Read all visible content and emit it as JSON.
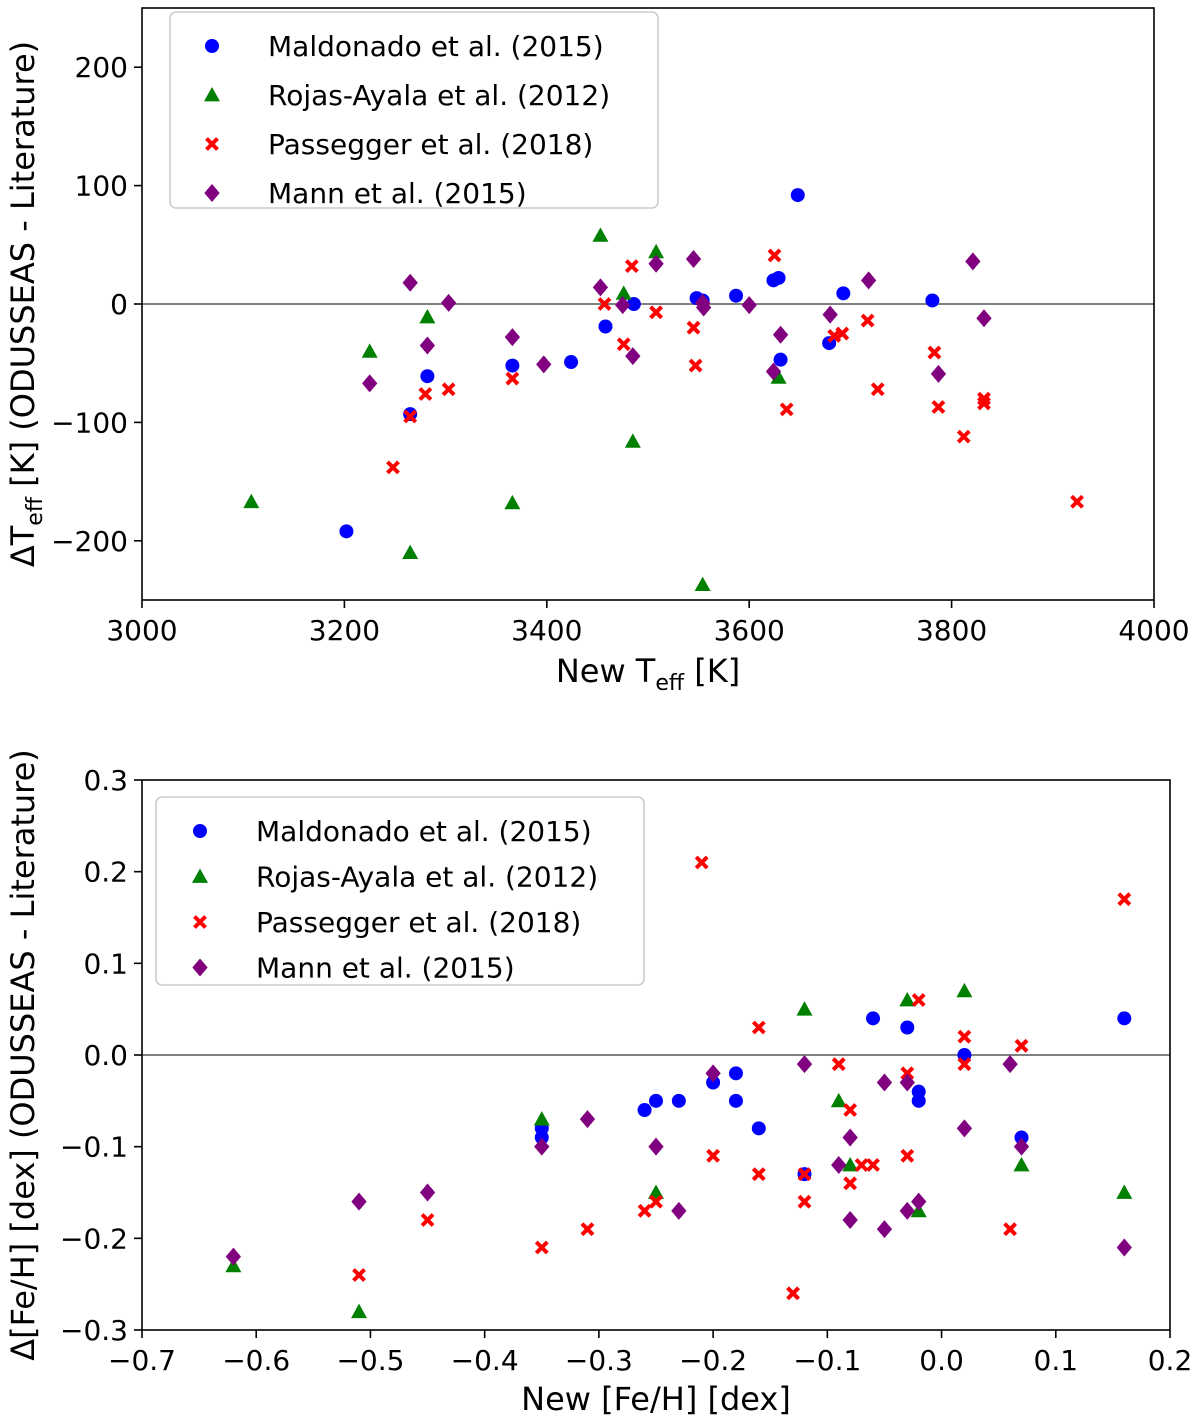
{
  "colors": {
    "maldonado": "#0000ff",
    "rojas": "#008000",
    "passegger": "#ff0000",
    "mann": "#800080",
    "zeroline": "#808080"
  },
  "chart_data": [
    {
      "type": "scatter",
      "xlabel": {
        "pre": "New T",
        "sub": "eff",
        "post": " [K]"
      },
      "ylabel": {
        "pre": "ΔT",
        "sub": "eff",
        "post": " [K] (ODUSSEAS - Literature)"
      },
      "xlim": [
        3000,
        4000
      ],
      "ylim": [
        -250,
        250
      ],
      "xticks": [
        3000,
        3200,
        3400,
        3600,
        3800,
        4000
      ],
      "xtick_labels": [
        "3000",
        "3200",
        "3400",
        "3600",
        "3800",
        "4000"
      ],
      "yticks": [
        -200,
        -100,
        0,
        100,
        200
      ],
      "ytick_labels": [
        "−200",
        "−100",
        "0",
        "100",
        "200"
      ],
      "reference_line": 0,
      "legend_position": "upper-left",
      "series": [
        {
          "key": "maldonado",
          "name": "Maldonado et al. (2015)",
          "marker": "circle",
          "x": [
            3202,
            3265,
            3282,
            3366,
            3424,
            3458,
            3486,
            3548,
            3554,
            3587,
            3624,
            3629,
            3631,
            3648,
            3679,
            3693,
            3781
          ],
          "y": [
            -192,
            -93,
            -61,
            -52,
            -49,
            -19,
            0,
            5,
            3,
            7,
            20,
            22,
            -47,
            92,
            -33,
            9,
            3
          ]
        },
        {
          "key": "rojas",
          "name": "Rojas-Ayala et al. (2012)",
          "marker": "triangle",
          "x": [
            3108,
            3225,
            3265,
            3282,
            3366,
            3453,
            3476,
            3485,
            3508,
            3554,
            3629
          ],
          "y": [
            -167,
            -40,
            -210,
            -11,
            -168,
            58,
            9,
            -116,
            44,
            -237,
            -62
          ]
        },
        {
          "key": "passegger",
          "name": "Passegger et al. (2018)",
          "marker": "x",
          "x": [
            3248,
            3265,
            3280,
            3303,
            3366,
            3457,
            3476,
            3484,
            3508,
            3545,
            3547,
            3625,
            3637,
            3684,
            3692,
            3717,
            3727,
            3783,
            3787,
            3812,
            3832,
            3832,
            3924
          ],
          "y": [
            -138,
            -95,
            -76,
            -72,
            -63,
            0,
            -34,
            32,
            -7,
            -20,
            -52,
            41,
            -89,
            -27,
            -25,
            -14,
            -72,
            -41,
            -87,
            -112,
            -80,
            -84,
            -167
          ]
        },
        {
          "key": "mann",
          "name": "Mann et al. (2015)",
          "marker": "diamond",
          "x": [
            3225,
            3265,
            3282,
            3303,
            3366,
            3397,
            3453,
            3475,
            3485,
            3508,
            3545,
            3554,
            3555,
            3600,
            3624,
            3631,
            3680,
            3718,
            3787,
            3821,
            3832
          ],
          "y": [
            -67,
            18,
            -35,
            1,
            -28,
            -51,
            14,
            -1,
            -44,
            34,
            38,
            1,
            -3,
            -1,
            -57,
            -26,
            -9,
            20,
            -59,
            36,
            -12
          ]
        }
      ]
    },
    {
      "type": "scatter",
      "xlabel": {
        "pre": "New [Fe/H] [dex]",
        "sub": "",
        "post": ""
      },
      "ylabel": {
        "pre": "Δ[Fe/H] [dex] (ODUSSEAS - Literature)",
        "sub": "",
        "post": ""
      },
      "xlim": [
        -0.7,
        0.2
      ],
      "ylim": [
        -0.3,
        0.3
      ],
      "xticks": [
        -0.7,
        -0.6,
        -0.5,
        -0.4,
        -0.3,
        -0.2,
        -0.1,
        0.0,
        0.1,
        0.2
      ],
      "xtick_labels": [
        "−0.7",
        "−0.6",
        "−0.5",
        "−0.4",
        "−0.3",
        "−0.2",
        "−0.1",
        "0.0",
        "0.1",
        "0.2"
      ],
      "yticks": [
        -0.3,
        -0.2,
        -0.1,
        0.0,
        0.1,
        0.2,
        0.3
      ],
      "ytick_labels": [
        "−0.3",
        "−0.2",
        "−0.1",
        "0.0",
        "0.1",
        "0.2",
        "0.3"
      ],
      "reference_line": 0,
      "legend_position": "upper-left",
      "series": [
        {
          "key": "maldonado",
          "name": "Maldonado et al. (2015)",
          "marker": "circle",
          "x": [
            -0.35,
            -0.35,
            -0.26,
            -0.25,
            -0.23,
            -0.2,
            -0.18,
            -0.18,
            -0.16,
            -0.12,
            -0.06,
            -0.03,
            -0.02,
            -0.02,
            0.02,
            0.07,
            0.16
          ],
          "y": [
            -0.08,
            -0.09,
            -0.06,
            -0.05,
            -0.05,
            -0.03,
            -0.02,
            -0.05,
            -0.08,
            -0.13,
            0.04,
            0.03,
            -0.04,
            -0.05,
            0.0,
            -0.09,
            0.04
          ]
        },
        {
          "key": "rojas",
          "name": "Rojas-Ayala et al. (2012)",
          "marker": "triangle",
          "x": [
            -0.62,
            -0.51,
            -0.35,
            -0.25,
            -0.12,
            -0.09,
            -0.08,
            -0.03,
            -0.02,
            0.02,
            0.07,
            0.16
          ],
          "y": [
            -0.23,
            -0.28,
            -0.07,
            -0.15,
            0.05,
            -0.05,
            -0.12,
            0.06,
            -0.17,
            0.07,
            -0.12,
            -0.15
          ]
        },
        {
          "key": "passegger",
          "name": "Passegger et al. (2018)",
          "marker": "x",
          "x": [
            -0.51,
            -0.45,
            -0.35,
            -0.31,
            -0.26,
            -0.25,
            -0.21,
            -0.2,
            -0.16,
            -0.16,
            -0.13,
            -0.12,
            -0.12,
            -0.09,
            -0.08,
            -0.08,
            -0.07,
            -0.06,
            -0.03,
            -0.03,
            -0.02,
            0.02,
            0.02,
            0.06,
            0.07,
            0.16
          ],
          "y": [
            -0.24,
            -0.18,
            -0.21,
            -0.19,
            -0.17,
            -0.16,
            0.21,
            -0.11,
            0.03,
            -0.13,
            -0.26,
            -0.13,
            -0.16,
            -0.01,
            -0.06,
            -0.14,
            -0.12,
            -0.12,
            -0.02,
            -0.11,
            0.06,
            0.02,
            -0.01,
            -0.19,
            0.01,
            0.17
          ]
        },
        {
          "key": "mann",
          "name": "Mann et al. (2015)",
          "marker": "diamond",
          "x": [
            -0.62,
            -0.51,
            -0.45,
            -0.35,
            -0.31,
            -0.25,
            -0.23,
            -0.2,
            -0.12,
            -0.09,
            -0.08,
            -0.08,
            -0.05,
            -0.05,
            -0.03,
            -0.03,
            -0.02,
            0.02,
            0.06,
            0.07,
            0.16
          ],
          "y": [
            -0.22,
            -0.16,
            -0.15,
            -0.1,
            -0.07,
            -0.1,
            -0.17,
            -0.02,
            -0.01,
            -0.12,
            -0.09,
            -0.18,
            -0.03,
            -0.19,
            -0.03,
            -0.17,
            -0.16,
            -0.08,
            -0.01,
            -0.1,
            -0.21
          ]
        }
      ]
    }
  ]
}
